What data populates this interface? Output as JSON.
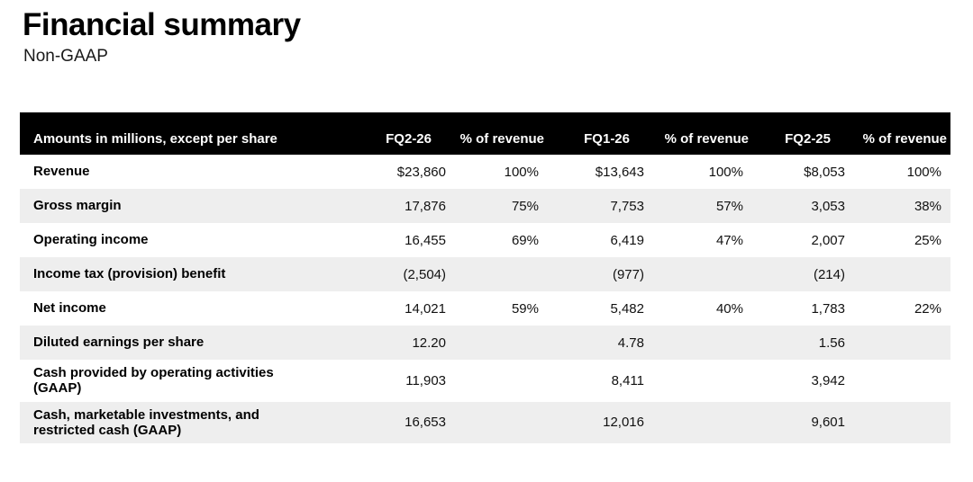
{
  "page": {
    "title": "Financial summary",
    "subtitle": "Non-GAAP"
  },
  "table": {
    "columns": [
      "Amounts in millions, except per share",
      "FQ2-26",
      "% of revenue",
      "FQ1-26",
      "% of revenue",
      "FQ2-25",
      "% of revenue"
    ],
    "rows": [
      {
        "label": "Revenue",
        "values": [
          "$23,860",
          "100%",
          "$13,643",
          "100%",
          "$8,053",
          "100%"
        ]
      },
      {
        "label": "Gross margin",
        "values": [
          "17,876",
          "75%",
          "7,753",
          "57%",
          "3,053",
          "38%"
        ]
      },
      {
        "label": "Operating income",
        "values": [
          "16,455",
          "69%",
          "6,419",
          "47%",
          "2,007",
          "25%"
        ]
      },
      {
        "label": "Income tax (provision) benefit",
        "values": [
          "(2,504)",
          "",
          "(977)",
          "",
          "(214)",
          ""
        ]
      },
      {
        "label": "Net income",
        "values": [
          "14,021",
          "59%",
          "5,482",
          "40%",
          "1,783",
          "22%"
        ]
      },
      {
        "label": "Diluted earnings per share",
        "values": [
          "12.20",
          "",
          "4.78",
          "",
          "1.56",
          ""
        ]
      },
      {
        "label": "Cash provided by operating activities (GAAP)",
        "values": [
          "11,903",
          "",
          "8,411",
          "",
          "3,942",
          ""
        ]
      },
      {
        "label": "Cash, marketable investments, and restricted cash (GAAP)",
        "values": [
          "16,653",
          "",
          "12,016",
          "",
          "9,601",
          ""
        ]
      }
    ],
    "colors": {
      "header_bg": "#000000",
      "header_text": "#ffffff",
      "row_alt_bg": "#eeeeee",
      "row_bg": "#ffffff",
      "text": "#000000"
    }
  }
}
